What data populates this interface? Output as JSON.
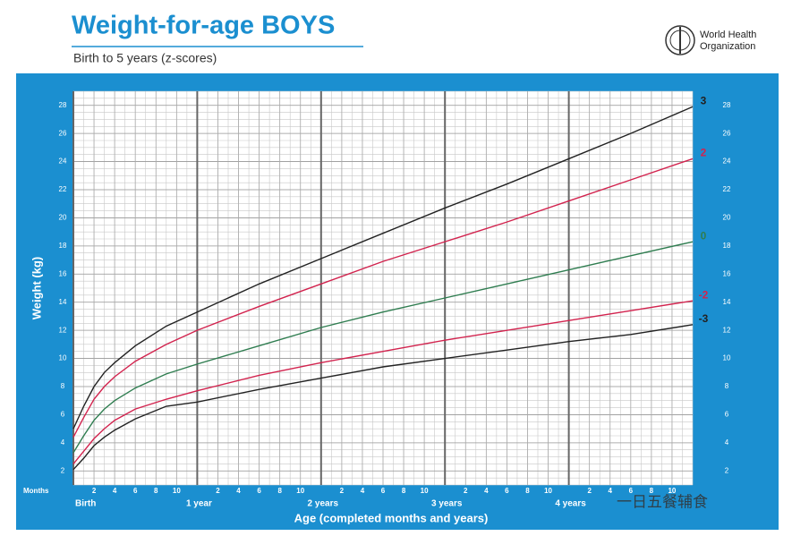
{
  "chart_data": {
    "type": "line",
    "title": "Weight-for-age BOYS",
    "subtitle": "Birth to 5 years (z-scores)",
    "y_label": "Weight (kg)",
    "x_label": "Age (completed months and years)",
    "x_unit_label": "Months",
    "x": [
      0,
      1,
      2,
      3,
      4,
      6,
      9,
      12,
      18,
      24,
      30,
      36,
      42,
      48,
      54,
      60
    ],
    "series": [
      {
        "name": "3",
        "color": "#222222",
        "values": [
          5.0,
          6.6,
          8.0,
          9.0,
          9.7,
          10.9,
          12.3,
          13.3,
          15.3,
          17.1,
          18.9,
          20.7,
          22.4,
          24.2,
          26.0,
          27.9
        ]
      },
      {
        "name": "2",
        "color": "#d2234e",
        "values": [
          4.4,
          5.8,
          7.1,
          8.0,
          8.7,
          9.8,
          11.0,
          12.0,
          13.7,
          15.3,
          16.9,
          18.3,
          19.7,
          21.2,
          22.7,
          24.2
        ]
      },
      {
        "name": "0",
        "color": "#2f7d50",
        "values": [
          3.3,
          4.5,
          5.6,
          6.4,
          7.0,
          7.9,
          8.9,
          9.6,
          10.9,
          12.2,
          13.3,
          14.3,
          15.3,
          16.3,
          17.3,
          18.3
        ]
      },
      {
        "name": "-2",
        "color": "#d2234e",
        "values": [
          2.5,
          3.4,
          4.3,
          5.0,
          5.6,
          6.4,
          7.1,
          7.7,
          8.8,
          9.7,
          10.5,
          11.3,
          12.0,
          12.7,
          13.4,
          14.1
        ]
      },
      {
        "name": "-3",
        "color": "#222222",
        "values": [
          2.1,
          2.9,
          3.8,
          4.4,
          4.9,
          5.7,
          6.6,
          6.9,
          7.8,
          8.6,
          9.4,
          10.0,
          10.6,
          11.2,
          11.7,
          12.4
        ]
      }
    ],
    "xlim": [
      0,
      60
    ],
    "ylim": [
      1,
      29
    ],
    "yticks": [
      2,
      4,
      6,
      8,
      10,
      12,
      14,
      16,
      18,
      20,
      22,
      24,
      26,
      28
    ],
    "xticks": [
      {
        "value": 0,
        "label": "Birth"
      },
      {
        "value": 2,
        "label": "2"
      },
      {
        "value": 4,
        "label": "4"
      },
      {
        "value": 6,
        "label": "6"
      },
      {
        "value": 8,
        "label": "8"
      },
      {
        "value": 10,
        "label": "10"
      },
      {
        "value": 12,
        "label": "1 year"
      },
      {
        "value": 14,
        "label": "2"
      },
      {
        "value": 16,
        "label": "4"
      },
      {
        "value": 18,
        "label": "6"
      },
      {
        "value": 20,
        "label": "8"
      },
      {
        "value": 22,
        "label": "10"
      },
      {
        "value": 24,
        "label": "2 years"
      },
      {
        "value": 26,
        "label": "2"
      },
      {
        "value": 28,
        "label": "4"
      },
      {
        "value": 30,
        "label": "6"
      },
      {
        "value": 32,
        "label": "8"
      },
      {
        "value": 34,
        "label": "10"
      },
      {
        "value": 36,
        "label": "3 years"
      },
      {
        "value": 38,
        "label": "2"
      },
      {
        "value": 40,
        "label": "4"
      },
      {
        "value": 42,
        "label": "6"
      },
      {
        "value": 44,
        "label": "8"
      },
      {
        "value": 46,
        "label": "10"
      },
      {
        "value": 48,
        "label": "4 years"
      },
      {
        "value": 50,
        "label": "2"
      },
      {
        "value": 52,
        "label": "4"
      },
      {
        "value": 54,
        "label": "6"
      },
      {
        "value": 56,
        "label": "8"
      },
      {
        "value": 58,
        "label": "10"
      }
    ],
    "grid": true
  },
  "logo": {
    "lines": [
      "World Health",
      "Organization"
    ]
  },
  "watermark": "一日五餐辅食"
}
